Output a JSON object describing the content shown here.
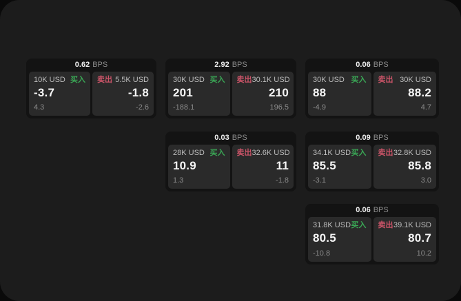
{
  "labels": {
    "bps": "BPS",
    "buy": "买入",
    "sell": "卖出"
  },
  "colors": {
    "buy_green": "#3aa655",
    "sell_rose": "#cb5468",
    "panel_bg": "#1c1c1c",
    "card_bg": "#131313",
    "tile_bg": "#2a2a2a"
  },
  "cards": [
    {
      "bps": "0.62",
      "buy": {
        "size": "10K USD",
        "value": "-3.7",
        "delta": "4.3"
      },
      "sell": {
        "size": "5.5K USD",
        "value": "-1.8",
        "delta": "-2.6"
      }
    },
    {
      "bps": "2.92",
      "buy": {
        "size": "30K USD",
        "value": "201",
        "delta": "-188.1"
      },
      "sell": {
        "size": "30.1K USD",
        "value": "210",
        "delta": "196.5"
      }
    },
    {
      "bps": "0.06",
      "buy": {
        "size": "30K USD",
        "value": "88",
        "delta": "-4.9"
      },
      "sell": {
        "size": "30K USD",
        "value": "88.2",
        "delta": "4.7"
      }
    },
    {
      "bps": "0.03",
      "buy": {
        "size": "28K USD",
        "value": "10.9",
        "delta": "1.3"
      },
      "sell": {
        "size": "32.6K USD",
        "value": "11",
        "delta": "-1.8"
      }
    },
    {
      "bps": "0.09",
      "buy": {
        "size": "34.1K USD",
        "value": "85.5",
        "delta": "-3.1"
      },
      "sell": {
        "size": "32.8K USD",
        "value": "85.8",
        "delta": "3.0"
      }
    },
    {
      "bps": "0.06",
      "buy": {
        "size": "31.8K USD",
        "value": "80.5",
        "delta": "-10.8"
      },
      "sell": {
        "size": "39.1K USD",
        "value": "80.7",
        "delta": "10.2"
      }
    }
  ]
}
